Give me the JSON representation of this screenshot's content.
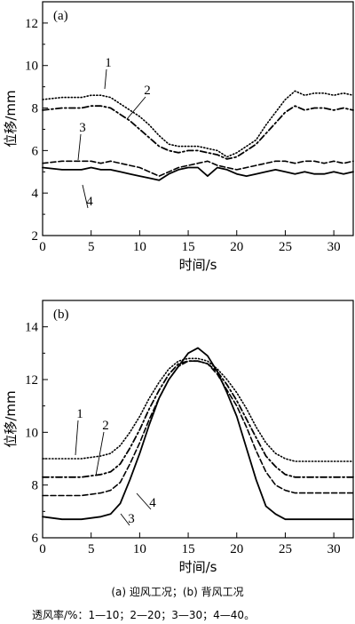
{
  "chart_data": [
    {
      "type": "line",
      "panel_label": "(a)",
      "xlabel": "时间/s",
      "ylabel": "位移/mm",
      "xlim": [
        0,
        32
      ],
      "ylim": [
        2,
        13
      ],
      "xticks": [
        0,
        5,
        10,
        15,
        20,
        25,
        30
      ],
      "yticks": [
        2,
        4,
        6,
        8,
        10,
        12
      ],
      "grid": false,
      "series": [
        {
          "name": "1",
          "style": "dotted",
          "x": [
            0,
            2,
            4,
            5,
            6,
            7,
            8,
            9,
            10,
            11,
            12,
            13,
            14,
            15,
            16,
            17,
            18,
            19,
            20,
            21,
            22,
            23,
            24,
            25,
            26,
            27,
            28,
            29,
            30,
            31,
            32
          ],
          "y": [
            8.4,
            8.5,
            8.5,
            8.6,
            8.6,
            8.5,
            8.2,
            7.9,
            7.6,
            7.2,
            6.7,
            6.3,
            6.2,
            6.2,
            6.2,
            6.1,
            6.0,
            5.7,
            5.9,
            6.2,
            6.5,
            7.2,
            7.8,
            8.4,
            8.8,
            8.6,
            8.7,
            8.7,
            8.6,
            8.7,
            8.6
          ]
        },
        {
          "name": "2",
          "style": "dash-dot",
          "x": [
            0,
            2,
            4,
            5,
            6,
            7,
            8,
            9,
            10,
            11,
            12,
            13,
            14,
            15,
            16,
            17,
            18,
            19,
            20,
            21,
            22,
            23,
            24,
            25,
            26,
            27,
            28,
            29,
            30,
            31,
            32
          ],
          "y": [
            7.9,
            8.0,
            8.0,
            8.1,
            8.1,
            8.0,
            7.7,
            7.4,
            7.0,
            6.6,
            6.2,
            6.0,
            5.9,
            6.0,
            6.0,
            5.9,
            5.8,
            5.6,
            5.7,
            6.0,
            6.3,
            6.8,
            7.3,
            7.8,
            8.1,
            7.9,
            8.0,
            8.0,
            7.9,
            8.0,
            7.9
          ]
        },
        {
          "name": "3",
          "style": "dashed",
          "x": [
            0,
            2,
            4,
            5,
            6,
            7,
            8,
            9,
            10,
            11,
            12,
            13,
            14,
            15,
            16,
            17,
            18,
            19,
            20,
            21,
            22,
            23,
            24,
            25,
            26,
            27,
            28,
            29,
            30,
            31,
            32
          ],
          "y": [
            5.4,
            5.5,
            5.5,
            5.5,
            5.4,
            5.5,
            5.4,
            5.3,
            5.2,
            5.0,
            4.8,
            5.0,
            5.2,
            5.3,
            5.4,
            5.5,
            5.3,
            5.2,
            5.1,
            5.2,
            5.3,
            5.4,
            5.5,
            5.5,
            5.4,
            5.5,
            5.5,
            5.4,
            5.5,
            5.4,
            5.5
          ]
        },
        {
          "name": "4",
          "style": "solid",
          "x": [
            0,
            2,
            4,
            5,
            6,
            7,
            8,
            9,
            10,
            11,
            12,
            13,
            14,
            15,
            16,
            17,
            18,
            19,
            20,
            21,
            22,
            23,
            24,
            25,
            26,
            27,
            28,
            29,
            30,
            31,
            32
          ],
          "y": [
            5.2,
            5.1,
            5.1,
            5.2,
            5.1,
            5.1,
            5.0,
            4.9,
            4.8,
            4.7,
            4.6,
            4.9,
            5.1,
            5.2,
            5.2,
            4.8,
            5.2,
            5.1,
            4.9,
            4.8,
            4.9,
            5.0,
            5.1,
            5.0,
            4.9,
            5.0,
            4.9,
            4.9,
            5.0,
            4.9,
            5.0
          ]
        }
      ]
    },
    {
      "type": "line",
      "panel_label": "(b)",
      "xlabel": "时间/s",
      "ylabel": "位移/mm",
      "xlim": [
        0,
        32
      ],
      "ylim": [
        6,
        15
      ],
      "xticks": [
        0,
        5,
        10,
        15,
        20,
        25,
        30
      ],
      "yticks": [
        6,
        8,
        10,
        12,
        14
      ],
      "grid": false,
      "series": [
        {
          "name": "1",
          "style": "dotted",
          "x": [
            0,
            2,
            4,
            6,
            7,
            8,
            9,
            10,
            11,
            12,
            13,
            14,
            15,
            16,
            17,
            18,
            19,
            20,
            21,
            22,
            23,
            24,
            25,
            26,
            27,
            28,
            30,
            32
          ],
          "y": [
            9.0,
            9.0,
            9.0,
            9.1,
            9.2,
            9.5,
            10.0,
            10.6,
            11.3,
            11.9,
            12.4,
            12.7,
            12.8,
            12.8,
            12.7,
            12.4,
            12.0,
            11.5,
            10.9,
            10.2,
            9.6,
            9.2,
            9.0,
            8.9,
            8.9,
            8.9,
            8.9,
            8.9
          ]
        },
        {
          "name": "2",
          "style": "dash-dot",
          "x": [
            0,
            2,
            4,
            6,
            7,
            8,
            9,
            10,
            11,
            12,
            13,
            14,
            15,
            16,
            17,
            18,
            19,
            20,
            21,
            22,
            23,
            24,
            25,
            26,
            27,
            28,
            30,
            32
          ],
          "y": [
            8.3,
            8.3,
            8.3,
            8.4,
            8.5,
            8.8,
            9.4,
            10.1,
            10.9,
            11.6,
            12.2,
            12.6,
            12.7,
            12.7,
            12.6,
            12.3,
            11.8,
            11.2,
            10.5,
            9.8,
            9.1,
            8.7,
            8.4,
            8.3,
            8.3,
            8.3,
            8.3,
            8.3
          ]
        },
        {
          "name": "3",
          "style": "dashed",
          "x": [
            0,
            2,
            4,
            6,
            7,
            8,
            9,
            10,
            11,
            12,
            13,
            14,
            15,
            16,
            17,
            18,
            19,
            20,
            21,
            22,
            23,
            24,
            25,
            26,
            27,
            28,
            30,
            32
          ],
          "y": [
            7.6,
            7.6,
            7.6,
            7.7,
            7.8,
            8.1,
            8.8,
            9.6,
            10.5,
            11.3,
            12.0,
            12.5,
            12.7,
            12.7,
            12.6,
            12.2,
            11.6,
            11.0,
            10.2,
            9.3,
            8.5,
            8.0,
            7.8,
            7.7,
            7.7,
            7.7,
            7.7,
            7.7
          ]
        },
        {
          "name": "4",
          "style": "solid",
          "x": [
            0,
            2,
            4,
            6,
            7,
            8,
            9,
            10,
            11,
            12,
            13,
            14,
            15,
            16,
            17,
            18,
            19,
            20,
            21,
            22,
            23,
            24,
            25,
            26,
            27,
            28,
            30,
            32
          ],
          "y": [
            6.8,
            6.7,
            6.7,
            6.8,
            6.9,
            7.3,
            8.2,
            9.2,
            10.3,
            11.3,
            12.0,
            12.5,
            13.0,
            13.2,
            12.9,
            12.3,
            11.5,
            10.6,
            9.4,
            8.2,
            7.2,
            6.9,
            6.7,
            6.7,
            6.7,
            6.7,
            6.7,
            6.7
          ]
        }
      ]
    }
  ],
  "caption": {
    "line1": "(a) 迎风工况；(b) 背风工况",
    "line2": "透风率/%：1—10；2—20；3—30；4—40。"
  }
}
